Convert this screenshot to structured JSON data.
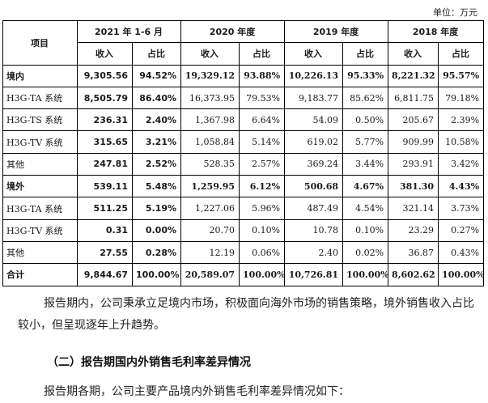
{
  "unit_label": "单位：万元",
  "table": {
    "corner_label": "项目",
    "periods": [
      "2021 年 1-6 月",
      "2020 年度",
      "2019 年度",
      "2018 年度"
    ],
    "subheaders": [
      "收入",
      "占比",
      "收入",
      "占比",
      "收入",
      "占比",
      "收入",
      "占比"
    ],
    "rows": [
      {
        "label": "境内",
        "bold": true,
        "cells": [
          "9,305.56",
          "94.52%",
          "19,329.12",
          "93.88%",
          "10,226.13",
          "95.33%",
          "8,221.32",
          "95.57%"
        ]
      },
      {
        "label": "H3G-TA 系统",
        "bold": false,
        "cells": [
          "8,505.79",
          "86.40%",
          "16,373.95",
          "79.53%",
          "9,183.77",
          "85.62%",
          "6,811.75",
          "79.18%"
        ]
      },
      {
        "label": "H3G-TS 系统",
        "bold": false,
        "cells": [
          "236.31",
          "2.40%",
          "1,367.98",
          "6.64%",
          "54.09",
          "0.50%",
          "205.67",
          "2.39%"
        ]
      },
      {
        "label": "H3G-TV 系统",
        "bold": false,
        "cells": [
          "315.65",
          "3.21%",
          "1,058.84",
          "5.14%",
          "619.02",
          "5.77%",
          "909.99",
          "10.58%"
        ]
      },
      {
        "label": "其他",
        "bold": false,
        "cells": [
          "247.81",
          "2.52%",
          "528.35",
          "2.57%",
          "369.24",
          "3.44%",
          "293.91",
          "3.42%"
        ]
      },
      {
        "label": "境外",
        "bold": true,
        "cells": [
          "539.11",
          "5.48%",
          "1,259.95",
          "6.12%",
          "500.68",
          "4.67%",
          "381.30",
          "4.43%"
        ]
      },
      {
        "label": "H3G-TA 系统",
        "bold": false,
        "cells": [
          "511.25",
          "5.19%",
          "1,227.06",
          "5.96%",
          "487.49",
          "4.54%",
          "321.14",
          "3.73%"
        ]
      },
      {
        "label": "H3G-TV 系统",
        "bold": false,
        "cells": [
          "0.31",
          "0.00%",
          "20.70",
          "0.10%",
          "10.78",
          "0.10%",
          "23.29",
          "0.27%"
        ]
      },
      {
        "label": "其他",
        "bold": false,
        "cells": [
          "27.55",
          "0.28%",
          "12.19",
          "0.06%",
          "2.40",
          "0.02%",
          "36.87",
          "0.43%"
        ]
      },
      {
        "label": "合计",
        "bold": true,
        "cells": [
          "9,844.67",
          "100.00%",
          "20,589.07",
          "100.00%",
          "10,726.81",
          "100.00%",
          "8,602.62",
          "100.00%"
        ]
      }
    ]
  },
  "paragraph1": "报告期内，公司秉承立足境内市场，积极面向海外市场的销售策略，境外销售收入占比较小，但呈现逐年上升趋势。",
  "heading2": "（二）报告期国内外销售毛利率差异情况",
  "paragraph2": "报告期各期，公司主要产品境内外销售毛利率差异情况如下："
}
